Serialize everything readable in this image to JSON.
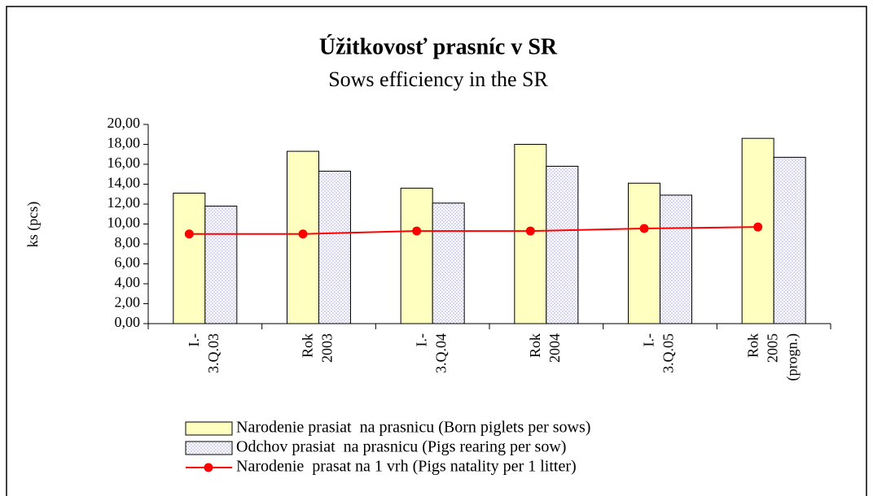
{
  "chart_data": {
    "type": "bar",
    "title": "Úžitkovosť prasníc v SR",
    "subtitle": "Sows efficiency in the SR",
    "y_label": "ks (pcs)",
    "categories": [
      [
        "I.-",
        "3.Q.03"
      ],
      [
        "Rok",
        "2003"
      ],
      [
        "I.-",
        "3.Q.04"
      ],
      [
        "Rok",
        "2004"
      ],
      [
        "I.-",
        "3.Q.05"
      ],
      [
        "Rok",
        "2005",
        "(progn.)"
      ]
    ],
    "series": [
      {
        "name": "Narodenie prasiat  na prasnicu (Born piglets per sows)",
        "type": "bar",
        "color": "#ffffc0",
        "values": [
          13.1,
          17.3,
          13.6,
          18.0,
          14.1,
          18.6
        ]
      },
      {
        "name": "Odchov prasiat  na prasnicu (Pigs rearing per sow)",
        "type": "bar",
        "pattern": "dots",
        "color": "#b8b8e8",
        "values": [
          11.8,
          15.3,
          12.1,
          15.8,
          12.9,
          16.7
        ]
      },
      {
        "name": "Narodenie  prasat na 1 vrh (Pigs natality per 1 litter)",
        "type": "line",
        "color": "#ff0000",
        "values": [
          9.0,
          9.0,
          9.3,
          9.3,
          9.55,
          9.7
        ]
      }
    ],
    "ylim": [
      0,
      20
    ],
    "yticks": [
      {
        "value": 0,
        "label": "0,00"
      },
      {
        "value": 2,
        "label": "2,00"
      },
      {
        "value": 4,
        "label": "4,00"
      },
      {
        "value": 6,
        "label": "6,00"
      },
      {
        "value": 8,
        "label": "8,00"
      },
      {
        "value": 10,
        "label": "10,00"
      },
      {
        "value": 12,
        "label": "12,00"
      },
      {
        "value": 14,
        "label": "14,00"
      },
      {
        "value": 16,
        "label": "16,00"
      },
      {
        "value": 18,
        "label": "18,00"
      },
      {
        "value": 20,
        "label": "20,00"
      }
    ],
    "grid": false
  }
}
